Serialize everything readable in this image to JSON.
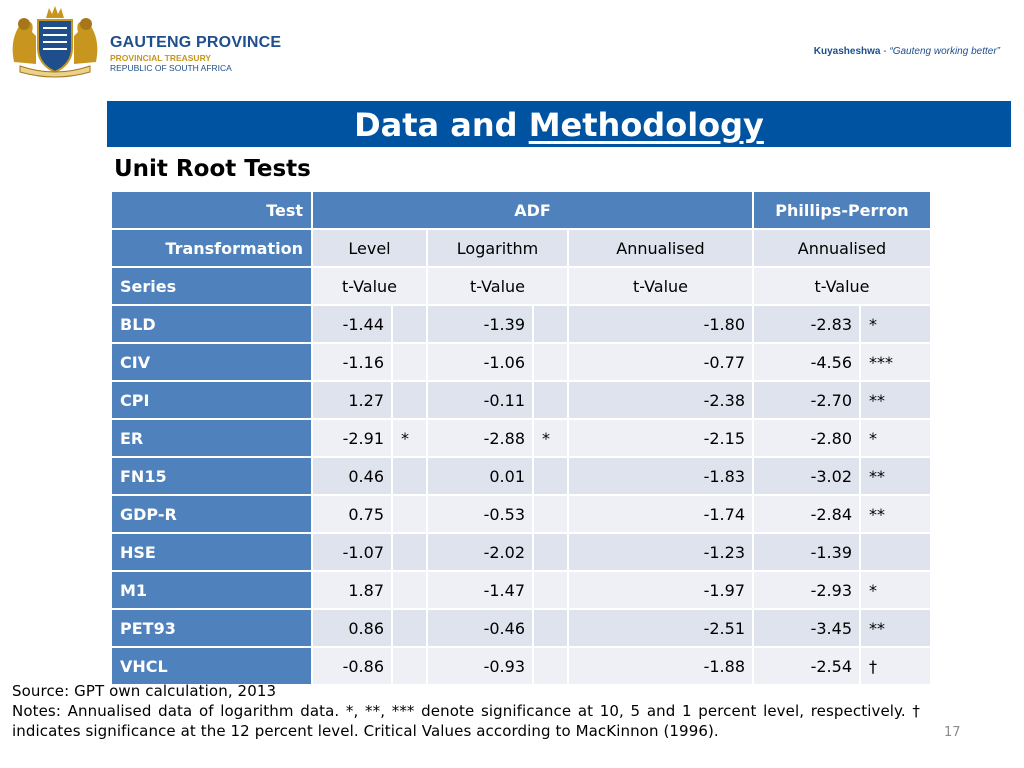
{
  "header": {
    "org_name": "GAUTENG PROVINCE",
    "org_dept": "PROVINCIAL TREASURY",
    "org_country": "REPUBLIC OF SOUTH AFRICA",
    "tagline_brand": "Kuyasheshwa",
    "tagline_sep": " - ",
    "tagline_text": "“Gauteng working better”",
    "crest_icon": "coat-of-arms-icon"
  },
  "slide": {
    "title_prefix": "Data and ",
    "title_underlined": "Methodology",
    "subtitle": "Unit Root Tests"
  },
  "table": {
    "row_test": {
      "label": "Test",
      "adf": "ADF",
      "pp": "Phillips-Perron"
    },
    "row_transformation": {
      "label": "Transformation",
      "cols": [
        "Level",
        "Logarithm",
        "Annualised",
        "Annualised"
      ]
    },
    "row_series": {
      "label": "Series",
      "cols": [
        "t-Value",
        "t-Value",
        "t-Value",
        "t-Value"
      ]
    },
    "rows": [
      {
        "series": "BLD",
        "level": "-1.44",
        "level_sig": "",
        "log": "-1.39",
        "log_sig": "",
        "ann": "-1.80",
        "ann_sig": "",
        "pp": "-2.83",
        "pp_sig": "*"
      },
      {
        "series": "CIV",
        "level": "-1.16",
        "level_sig": "",
        "log": "-1.06",
        "log_sig": "",
        "ann": "-0.77",
        "ann_sig": "",
        "pp": "-4.56",
        "pp_sig": "***"
      },
      {
        "series": "CPI",
        "level": "1.27",
        "level_sig": "",
        "log": "-0.11",
        "log_sig": "",
        "ann": "-2.38",
        "ann_sig": "",
        "pp": "-2.70",
        "pp_sig": "**"
      },
      {
        "series": "ER",
        "level": "-2.91",
        "level_sig": "*",
        "log": "-2.88",
        "log_sig": "*",
        "ann": "-2.15",
        "ann_sig": "",
        "pp": "-2.80",
        "pp_sig": "*"
      },
      {
        "series": "FN15",
        "level": "0.46",
        "level_sig": "",
        "log": "0.01",
        "log_sig": "",
        "ann": "-1.83",
        "ann_sig": "",
        "pp": "-3.02",
        "pp_sig": "**"
      },
      {
        "series": "GDP-R",
        "level": "0.75",
        "level_sig": "",
        "log": "-0.53",
        "log_sig": "",
        "ann": "-1.74",
        "ann_sig": "",
        "pp": "-2.84",
        "pp_sig": "**"
      },
      {
        "series": "HSE",
        "level": "-1.07",
        "level_sig": "",
        "log": "-2.02",
        "log_sig": "",
        "ann": "-1.23",
        "ann_sig": "",
        "pp": "-1.39",
        "pp_sig": ""
      },
      {
        "series": "M1",
        "level": "1.87",
        "level_sig": "",
        "log": "-1.47",
        "log_sig": "",
        "ann": "-1.97",
        "ann_sig": "",
        "pp": "-2.93",
        "pp_sig": "*"
      },
      {
        "series": "PET93",
        "level": "0.86",
        "level_sig": "",
        "log": "-0.46",
        "log_sig": "",
        "ann": "-2.51",
        "ann_sig": "",
        "pp": "-3.45",
        "pp_sig": "**"
      },
      {
        "series": "VHCL",
        "level": "-0.86",
        "level_sig": "",
        "log": "-0.93",
        "log_sig": "",
        "ann": "-1.88",
        "ann_sig": "",
        "pp": "-2.54",
        "pp_sig": "†"
      }
    ]
  },
  "footer": {
    "source": "Source: GPT own calculation, 2013",
    "notes": "Notes: Annualised data of logarithm data. *, **, *** denote significance at 10, 5 and 1 percent level, respectively. † indicates significance at the 12 percent level. Critical Values according to MacKinnon (1996).",
    "page_number": "17"
  },
  "colors": {
    "title_bar": "#0053a0",
    "header_cell": "#4f81bd",
    "row_band_a": "#dfe3ee",
    "row_band_b": "#eef0f5",
    "brand_blue": "#1f4e8c",
    "brand_gold": "#c8961e"
  }
}
